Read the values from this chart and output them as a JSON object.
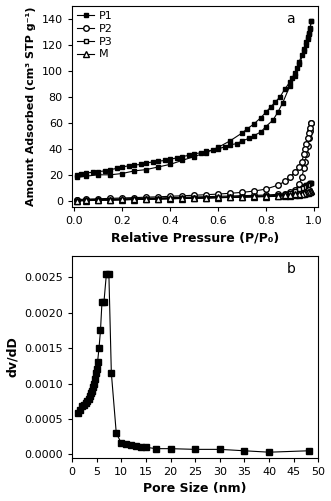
{
  "plot_a": {
    "title_label": "a",
    "xlabel": "Relative Pressure (P/P₀)",
    "ylabel": "Amount Adsorbed (cm³ STP g⁻¹)",
    "xlim": [
      -0.01,
      1.02
    ],
    "ylim": [
      -5,
      150
    ],
    "yticks": [
      0,
      20,
      40,
      60,
      80,
      100,
      120,
      140
    ],
    "xticks": [
      0.0,
      0.2,
      0.4,
      0.6,
      0.8,
      1.0
    ],
    "P1_adsorption_x": [
      0.01,
      0.03,
      0.05,
      0.08,
      0.1,
      0.13,
      0.15,
      0.18,
      0.2,
      0.23,
      0.25,
      0.28,
      0.3,
      0.33,
      0.35,
      0.38,
      0.4,
      0.43,
      0.45,
      0.48,
      0.5,
      0.53,
      0.55,
      0.58,
      0.6,
      0.63,
      0.65,
      0.68,
      0.7,
      0.73,
      0.75,
      0.78,
      0.8,
      0.83,
      0.85,
      0.87,
      0.9,
      0.92,
      0.94,
      0.96,
      0.97,
      0.975,
      0.98,
      0.985,
      0.99
    ],
    "P1_adsorption_y": [
      20,
      21,
      21.5,
      22,
      22.5,
      23,
      24,
      25,
      26,
      27,
      27.5,
      28,
      29,
      30,
      30.5,
      31,
      32,
      33,
      34,
      35,
      36,
      37,
      38,
      39,
      40,
      41.5,
      43,
      44,
      46,
      48,
      50,
      53,
      57,
      62,
      68,
      75,
      88,
      96,
      105,
      115,
      120,
      124,
      128,
      132,
      138
    ],
    "P1_desorption_x": [
      0.99,
      0.985,
      0.98,
      0.975,
      0.97,
      0.96,
      0.95,
      0.94,
      0.93,
      0.92,
      0.91,
      0.9,
      0.88,
      0.86,
      0.84,
      0.82,
      0.8,
      0.78,
      0.75,
      0.72,
      0.7,
      0.65,
      0.6,
      0.55,
      0.5,
      0.45,
      0.4,
      0.35,
      0.3,
      0.25,
      0.2,
      0.15,
      0.1,
      0.05,
      0.01
    ],
    "P1_desorption_y": [
      138,
      133,
      129,
      126,
      122,
      117,
      112,
      107,
      102,
      98,
      94,
      91,
      86,
      80,
      76,
      72,
      68,
      64,
      59,
      55,
      52,
      46,
      41,
      37,
      34,
      31,
      28,
      26,
      24,
      23,
      21,
      20,
      20,
      19,
      18
    ],
    "P2_adsorption_x": [
      0.01,
      0.05,
      0.1,
      0.15,
      0.2,
      0.25,
      0.3,
      0.35,
      0.4,
      0.45,
      0.5,
      0.55,
      0.6,
      0.65,
      0.7,
      0.75,
      0.8,
      0.85,
      0.88,
      0.9,
      0.92,
      0.94,
      0.95,
      0.96,
      0.965,
      0.97,
      0.975,
      0.98,
      0.985,
      0.99
    ],
    "P2_adsorption_y": [
      0.5,
      0.8,
      1.0,
      1.3,
      1.5,
      1.8,
      2.0,
      2.2,
      2.5,
      2.7,
      3.0,
      3.2,
      3.5,
      3.7,
      4.0,
      4.2,
      4.5,
      5.0,
      5.5,
      6.5,
      8.5,
      13,
      18,
      25,
      30,
      36,
      42,
      48,
      54,
      60
    ],
    "P2_desorption_x": [
      0.99,
      0.985,
      0.98,
      0.975,
      0.97,
      0.965,
      0.96,
      0.95,
      0.94,
      0.92,
      0.9,
      0.88,
      0.85,
      0.8,
      0.75,
      0.7,
      0.65,
      0.6,
      0.55,
      0.5,
      0.45,
      0.4,
      0.35,
      0.3,
      0.25,
      0.2,
      0.15,
      0.1,
      0.05,
      0.01
    ],
    "P2_desorption_y": [
      60,
      56,
      52,
      48,
      44,
      40,
      36,
      30,
      26,
      22,
      18,
      15,
      12,
      9,
      7.5,
      6.5,
      5.8,
      5.2,
      4.7,
      4.3,
      3.9,
      3.5,
      3.1,
      2.8,
      2.5,
      2.2,
      1.9,
      1.6,
      1.3,
      1.0
    ],
    "P3_adsorption_x": [
      0.01,
      0.05,
      0.1,
      0.15,
      0.2,
      0.25,
      0.3,
      0.35,
      0.4,
      0.45,
      0.5,
      0.55,
      0.6,
      0.65,
      0.7,
      0.75,
      0.8,
      0.85,
      0.88,
      0.9,
      0.92,
      0.94,
      0.95,
      0.96,
      0.965,
      0.97,
      0.975,
      0.98,
      0.985,
      0.99
    ],
    "P3_adsorption_y": [
      0.1,
      0.3,
      0.5,
      0.7,
      0.9,
      1.1,
      1.3,
      1.5,
      1.7,
      1.9,
      2.1,
      2.3,
      2.5,
      2.7,
      3.0,
      3.2,
      3.5,
      4.0,
      4.5,
      5.0,
      6.0,
      7.5,
      9.0,
      10.5,
      11.2,
      12.0,
      12.5,
      13.0,
      13.5,
      14.0
    ],
    "P3_desorption_x": [
      0.99,
      0.985,
      0.98,
      0.975,
      0.97,
      0.965,
      0.96,
      0.95,
      0.94,
      0.92,
      0.9,
      0.88,
      0.85,
      0.8,
      0.75,
      0.7,
      0.65,
      0.6,
      0.55,
      0.5,
      0.45,
      0.4,
      0.35,
      0.3,
      0.25,
      0.2,
      0.15,
      0.1,
      0.05,
      0.01
    ],
    "P3_desorption_y": [
      14.0,
      13.5,
      13.0,
      12.5,
      12.0,
      11.5,
      11.0,
      10.0,
      9.0,
      7.5,
      6.0,
      5.0,
      4.2,
      3.7,
      3.3,
      3.0,
      2.7,
      2.5,
      2.3,
      2.1,
      1.9,
      1.7,
      1.5,
      1.3,
      1.1,
      0.9,
      0.7,
      0.5,
      0.3,
      0.1
    ],
    "M_adsorption_x": [
      0.01,
      0.05,
      0.1,
      0.15,
      0.2,
      0.25,
      0.3,
      0.35,
      0.4,
      0.45,
      0.5,
      0.55,
      0.6,
      0.65,
      0.7,
      0.75,
      0.8,
      0.85,
      0.88,
      0.9,
      0.92,
      0.94,
      0.95,
      0.96,
      0.965,
      0.97,
      0.975,
      0.98,
      0.985,
      0.99
    ],
    "M_adsorption_y": [
      0.05,
      0.2,
      0.4,
      0.6,
      0.8,
      1.0,
      1.2,
      1.4,
      1.6,
      1.8,
      2.0,
      2.2,
      2.4,
      2.6,
      2.8,
      3.0,
      3.2,
      3.5,
      3.8,
      4.0,
      4.3,
      4.6,
      5.0,
      5.5,
      5.8,
      6.0,
      6.3,
      6.6,
      7.0,
      7.5
    ],
    "M_desorption_x": [
      0.99,
      0.985,
      0.98,
      0.975,
      0.97,
      0.965,
      0.96,
      0.95,
      0.94,
      0.92,
      0.9,
      0.88,
      0.85,
      0.8,
      0.75,
      0.7,
      0.65,
      0.6,
      0.55,
      0.5,
      0.45,
      0.4,
      0.35,
      0.3,
      0.25,
      0.2,
      0.15,
      0.1,
      0.05,
      0.01
    ],
    "M_desorption_y": [
      7.5,
      7.2,
      7.0,
      6.8,
      6.5,
      6.2,
      5.9,
      5.5,
      5.2,
      4.9,
      4.6,
      4.3,
      4.0,
      3.7,
      3.4,
      3.2,
      2.9,
      2.7,
      2.5,
      2.3,
      2.1,
      1.9,
      1.7,
      1.5,
      1.3,
      1.1,
      0.9,
      0.6,
      0.4,
      0.1
    ]
  },
  "plot_b": {
    "title_label": "b",
    "xlabel": "Pore Size (nm)",
    "ylabel": "dv/dD",
    "xlim": [
      0,
      50
    ],
    "ylim": [
      -5e-05,
      0.0028
    ],
    "xticks": [
      0,
      5,
      10,
      15,
      20,
      25,
      30,
      35,
      40,
      45,
      50
    ],
    "yticks": [
      0.0,
      0.0005,
      0.001,
      0.0015,
      0.002,
      0.0025
    ],
    "pore_x": [
      1.3,
      1.7,
      2.1,
      2.5,
      2.8,
      3.1,
      3.4,
      3.6,
      3.8,
      4.0,
      4.2,
      4.4,
      4.6,
      4.8,
      5.0,
      5.2,
      5.5,
      5.8,
      6.1,
      6.5,
      7.0,
      7.5,
      8.0,
      9.0,
      10.0,
      11.0,
      12.0,
      13.0,
      14.0,
      15.0,
      17.0,
      20.0,
      25.0,
      30.0,
      35.0,
      40.0,
      48.0
    ],
    "pore_y": [
      0.00058,
      0.00063,
      0.00068,
      0.0007,
      0.00072,
      0.00075,
      0.00078,
      0.00082,
      0.00086,
      0.0009,
      0.00095,
      0.001,
      0.00107,
      0.00115,
      0.0012,
      0.0013,
      0.0015,
      0.00175,
      0.00215,
      0.00215,
      0.00255,
      0.00255,
      0.00115,
      0.0003,
      0.00016,
      0.00014,
      0.00013,
      0.00012,
      0.00011,
      0.0001,
      8e-05,
      8e-05,
      7e-05,
      7e-05,
      5e-05,
      3e-05,
      5e-05
    ]
  },
  "line_color": "#000000",
  "marker_size_a": 3.5,
  "marker_size_b": 4,
  "linewidth": 0.8,
  "font_size_label": 9,
  "font_size_tick": 8,
  "font_size_legend": 8
}
